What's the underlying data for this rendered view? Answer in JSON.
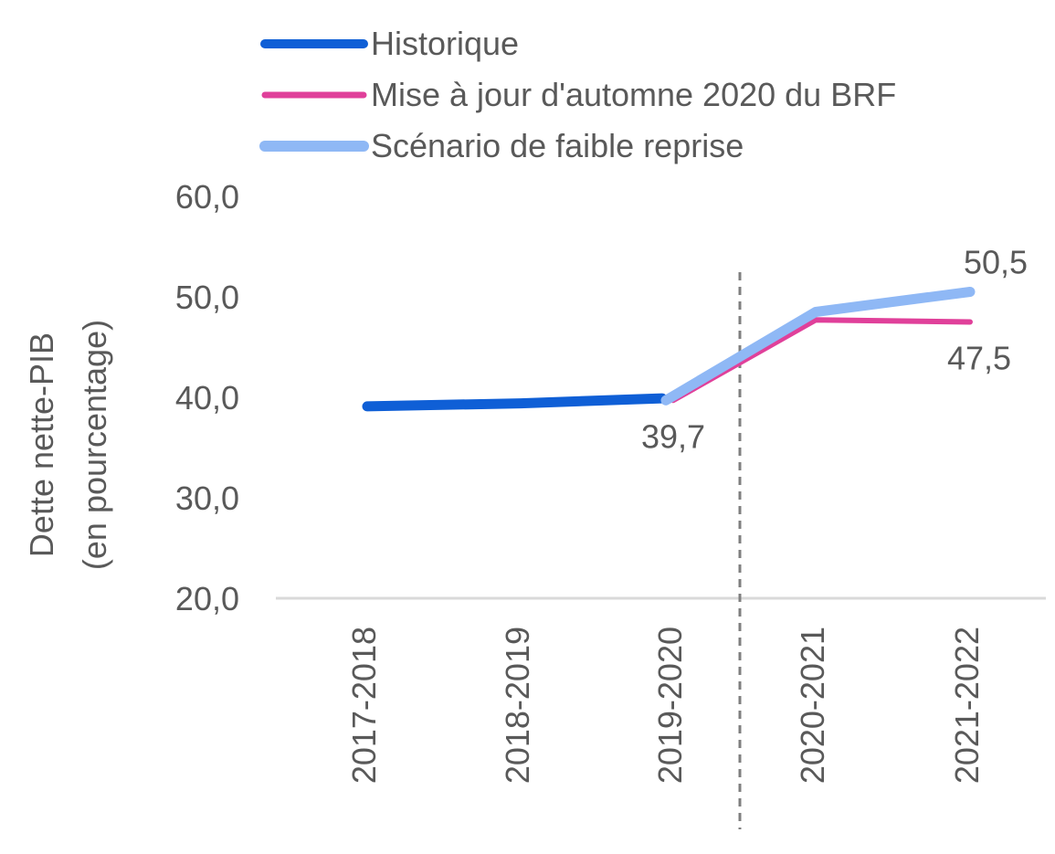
{
  "chart_data": {
    "type": "line",
    "title": "",
    "xlabel": "",
    "ylabel_lines": [
      "Dette nette-PIB",
      "(en pourcentage)"
    ],
    "ylim": [
      20,
      60
    ],
    "yticks": [
      {
        "value": 20,
        "label": "20,0"
      },
      {
        "value": 30,
        "label": "30,0"
      },
      {
        "value": 40,
        "label": "40,0"
      },
      {
        "value": 50,
        "label": "50,0"
      },
      {
        "value": 60,
        "label": "60,0"
      }
    ],
    "categories": [
      "2017-2018",
      "2018-2019",
      "2019-2020",
      "2020-2021",
      "2021-2022"
    ],
    "grid": false,
    "legend_position": "top",
    "projection_divider_between": [
      "2019-2020",
      "2020-2021"
    ],
    "series": [
      {
        "name": "Historique",
        "color": "#0F5FD6",
        "values": [
          39.1,
          39.4,
          39.9,
          null,
          null
        ]
      },
      {
        "name": "Mise à jour d'automne 2020 du BRF",
        "color": "#E0409A",
        "values": [
          null,
          null,
          39.7,
          47.7,
          47.5
        ]
      },
      {
        "name": "Scénario de faible reprise",
        "color": "#8FB8F5",
        "values": [
          null,
          null,
          39.7,
          48.5,
          50.5
        ]
      }
    ],
    "annotations": [
      {
        "series": 2,
        "index": 2,
        "text": "39,7",
        "placement": "below"
      },
      {
        "series": 1,
        "index": 4,
        "text": "47,5",
        "placement": "below"
      },
      {
        "series": 2,
        "index": 4,
        "text": "50,5",
        "placement": "above"
      }
    ]
  }
}
